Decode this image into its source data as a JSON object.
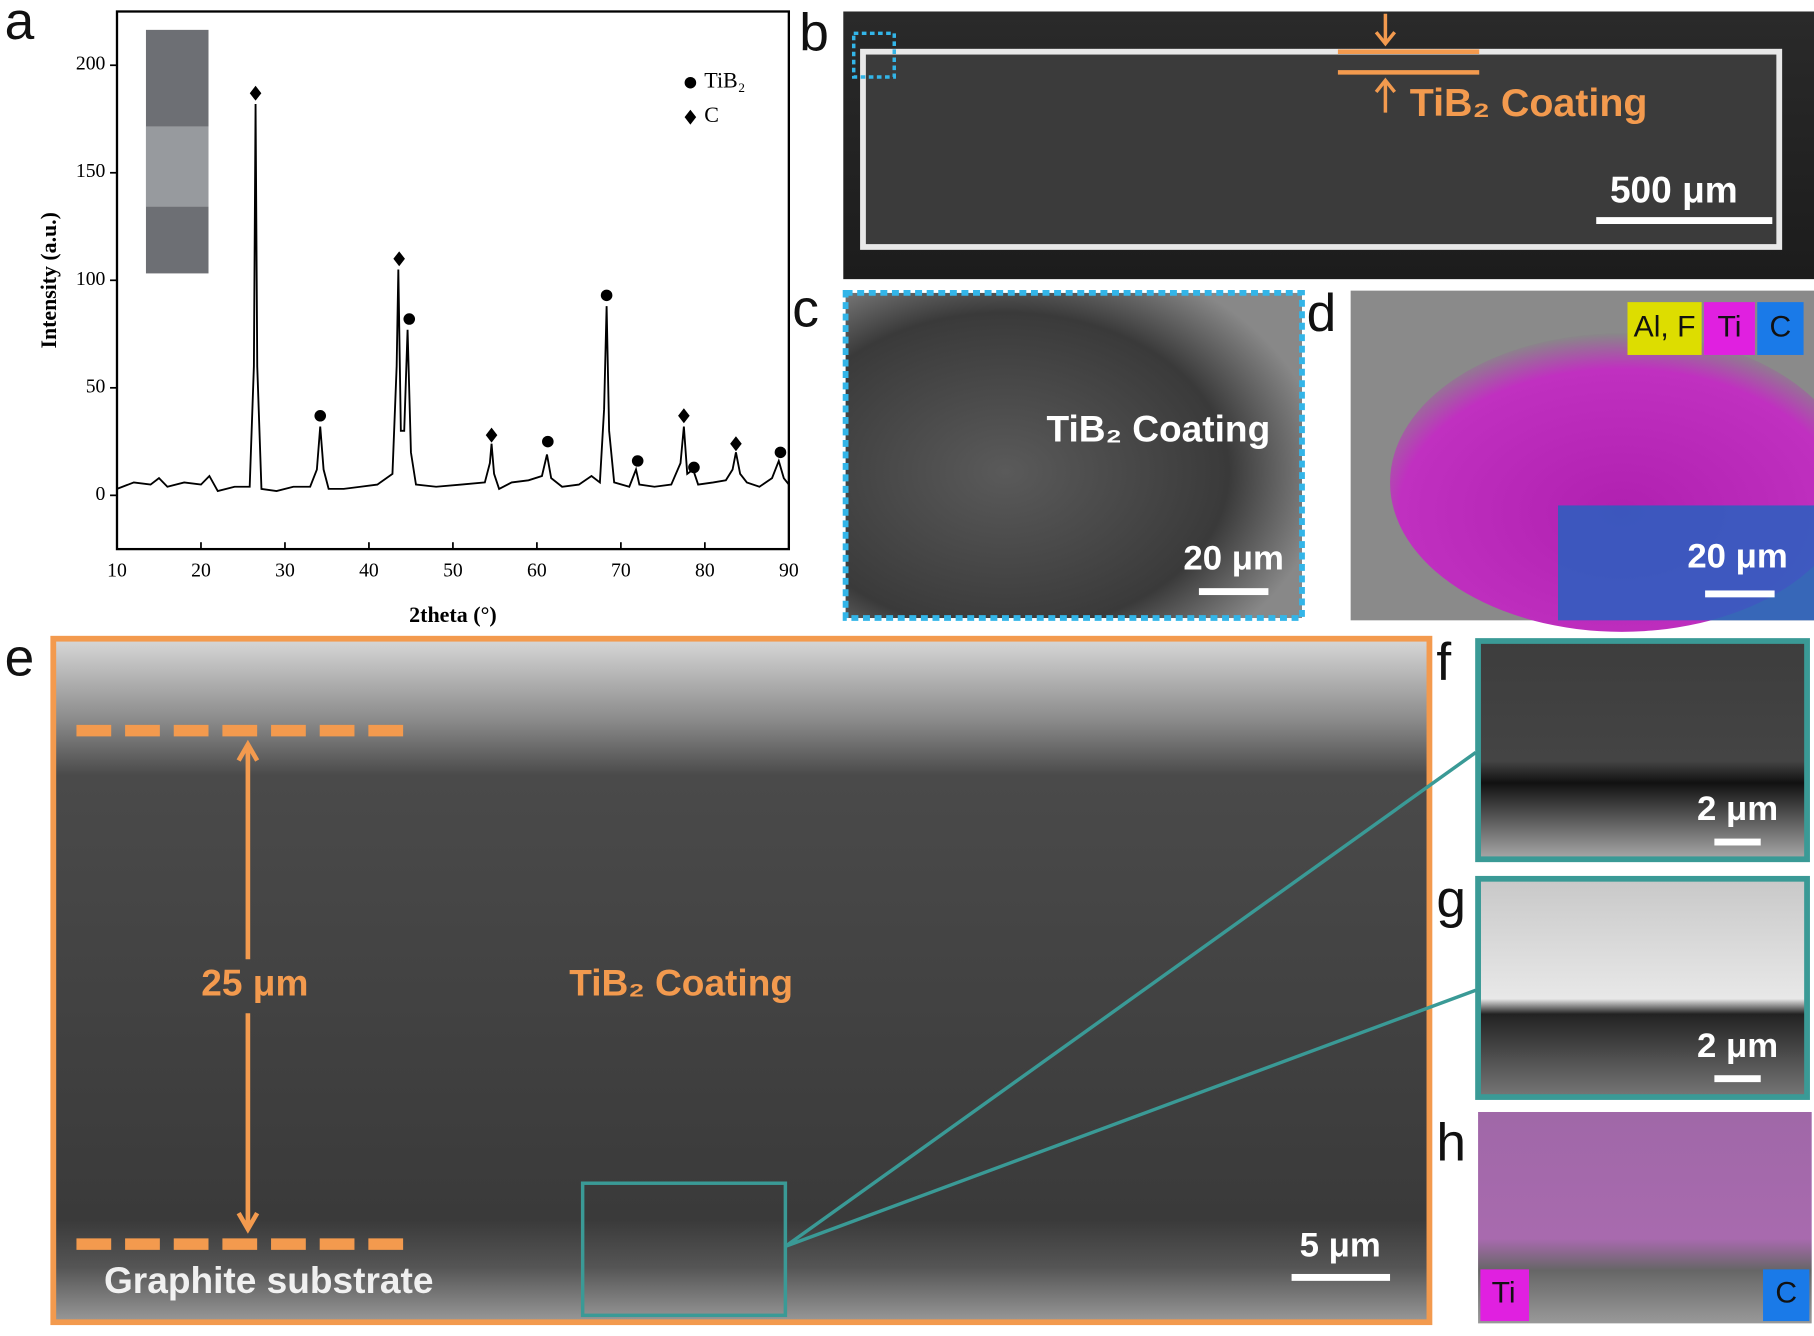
{
  "chart_data": {
    "type": "line",
    "panel_label": "a",
    "x_label": "2theta (°)",
    "y_label": "Intensity (a.u.)",
    "xlim": [
      10,
      90
    ],
    "ylim": [
      -25,
      225
    ],
    "xticks": [
      10,
      20,
      30,
      40,
      50,
      60,
      70,
      80,
      90
    ],
    "yticks": [
      0,
      50,
      100,
      150,
      200
    ],
    "color": "#000000",
    "x": [
      10,
      12,
      14,
      15,
      16,
      18,
      20,
      21,
      22,
      24,
      25.8,
      26.3,
      26.5,
      26.7,
      27.2,
      29,
      31,
      33,
      33.8,
      34.2,
      34.6,
      35.2,
      37,
      39,
      41,
      42.8,
      43.3,
      43.5,
      43.8,
      44.2,
      44.6,
      45,
      45.6,
      48,
      51,
      53.8,
      54.4,
      54.6,
      54.9,
      55.5,
      57,
      59,
      60.6,
      61.2,
      61.7,
      63,
      65,
      66.5,
      67.5,
      68,
      68.3,
      68.6,
      69.2,
      71,
      71.8,
      72.2,
      74,
      76,
      77.1,
      77.5,
      77.9,
      78.6,
      79.2,
      81,
      82.5,
      83.3,
      83.7,
      84.2,
      85,
      86.5,
      88,
      88.8,
      89.4,
      90
    ],
    "values": [
      3,
      6,
      5,
      8,
      4,
      6,
      5,
      9,
      2,
      4,
      4,
      60,
      182,
      60,
      3,
      2,
      4,
      4,
      12,
      32,
      12,
      3,
      3,
      4,
      5,
      10,
      60,
      105,
      30,
      30,
      77,
      20,
      5,
      4,
      5,
      6,
      15,
      24,
      10,
      3,
      6,
      7,
      9,
      19,
      8,
      4,
      5,
      9,
      6,
      40,
      88,
      30,
      6,
      4,
      12,
      5,
      4,
      5,
      15,
      32,
      10,
      12,
      5,
      6,
      7,
      12,
      20,
      10,
      6,
      4,
      8,
      16,
      8,
      5
    ],
    "markers": [
      {
        "name": "TiB₂",
        "symbol": "circle",
        "x": [
          34.2,
          44.8,
          61.3,
          68.3,
          72,
          78.7,
          89
        ],
        "values": [
          37,
          82,
          25,
          93,
          16,
          13,
          20
        ]
      },
      {
        "name": "C",
        "symbol": "diamond",
        "x": [
          26.5,
          43.6,
          54.6,
          77.5,
          83.7
        ],
        "values": [
          187,
          110,
          28,
          37,
          24
        ]
      }
    ]
  },
  "panels": {
    "b": {
      "label": "b",
      "coating": "TiB₂ Coating",
      "scale": "500 μm"
    },
    "c": {
      "label": "c",
      "coating": "TiB₂ Coating",
      "scale": "20 μm"
    },
    "d": {
      "label": "d",
      "legend": [
        "Al, F",
        "Ti",
        "C"
      ],
      "scale": "20 μm"
    },
    "e": {
      "label": "e",
      "thickness": "25 μm",
      "coating": "TiB₂ Coating",
      "substrate": "Graphite substrate",
      "scale": "5 μm"
    },
    "f": {
      "label": "f",
      "scale": "2 μm"
    },
    "g": {
      "label": "g",
      "scale": "2 μm"
    },
    "h": {
      "label": "h",
      "legend": [
        "Ti",
        "C"
      ]
    }
  }
}
